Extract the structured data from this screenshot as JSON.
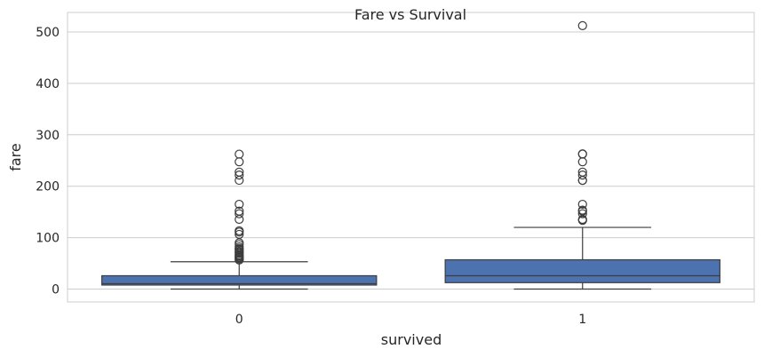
{
  "chart_data": {
    "type": "box",
    "title": "Fare vs Survival",
    "xlabel": "survived",
    "ylabel": "fare",
    "categories": [
      "0",
      "1"
    ],
    "ylim": [
      -25,
      538
    ],
    "yticks": [
      0,
      100,
      200,
      300,
      400,
      500
    ],
    "grid": true,
    "box_color": "#4c72b0",
    "series": [
      {
        "category": "0",
        "whisker_low": 0,
        "q1": 7.85,
        "median": 10.5,
        "q3": 26.0,
        "whisker_high": 53.1,
        "outliers": [
          56.5,
          57.0,
          59.4,
          61.2,
          61.4,
          63.4,
          65.0,
          66.6,
          69.5,
          71.0,
          73.5,
          76.7,
          77.3,
          79.2,
          82.2,
          86.5,
          90.0,
          106.4,
          110.9,
          113.3,
          135.6,
          146.5,
          151.6,
          164.9,
          211.5,
          221.8,
          227.5,
          247.5,
          262.4
        ]
      },
      {
        "category": "1",
        "whisker_low": 0,
        "q1": 12.5,
        "median": 26.0,
        "q3": 57.0,
        "whisker_high": 120.0,
        "outliers": [
          133.7,
          134.5,
          135.6,
          146.5,
          151.6,
          153.5,
          164.9,
          211.3,
          211.5,
          221.8,
          227.5,
          247.5,
          262.4,
          263.0,
          512.3
        ]
      }
    ]
  }
}
